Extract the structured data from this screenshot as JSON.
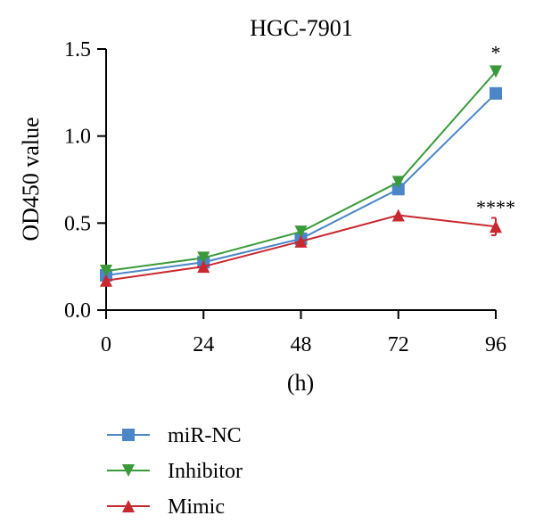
{
  "chart_data": {
    "type": "line",
    "title": "HGC-7901",
    "xlabel": "(h)",
    "ylabel": "OD450 value",
    "x": [
      0,
      24,
      48,
      72,
      96
    ],
    "xlim": [
      0,
      96
    ],
    "ylim": [
      0,
      1.5
    ],
    "xticks": [
      "0",
      "24",
      "48",
      "72",
      "96"
    ],
    "yticks": [
      "0.0",
      "0.5",
      "1.0",
      "1.5"
    ],
    "grid": false,
    "legend_position": "bottom-left",
    "series": [
      {
        "name": "miR-NC",
        "values": [
          0.2,
          0.275,
          0.41,
          0.695,
          1.245
        ],
        "color": "#4a86c8",
        "marker": "square"
      },
      {
        "name": "Inhibitor",
        "values": [
          0.225,
          0.3,
          0.45,
          0.735,
          1.37
        ],
        "color": "#3a9a3a",
        "marker": "triangle-down"
      },
      {
        "name": "Mimic",
        "values": [
          0.17,
          0.25,
          0.395,
          0.545,
          0.48
        ],
        "color": "#c8282e",
        "marker": "triangle-up",
        "error": [
          0,
          0,
          0,
          0,
          0.05
        ]
      }
    ],
    "annotations": [
      {
        "text": "*",
        "x": 96,
        "y": 1.37
      },
      {
        "text": "****",
        "x": 96,
        "y": 0.48
      }
    ]
  }
}
